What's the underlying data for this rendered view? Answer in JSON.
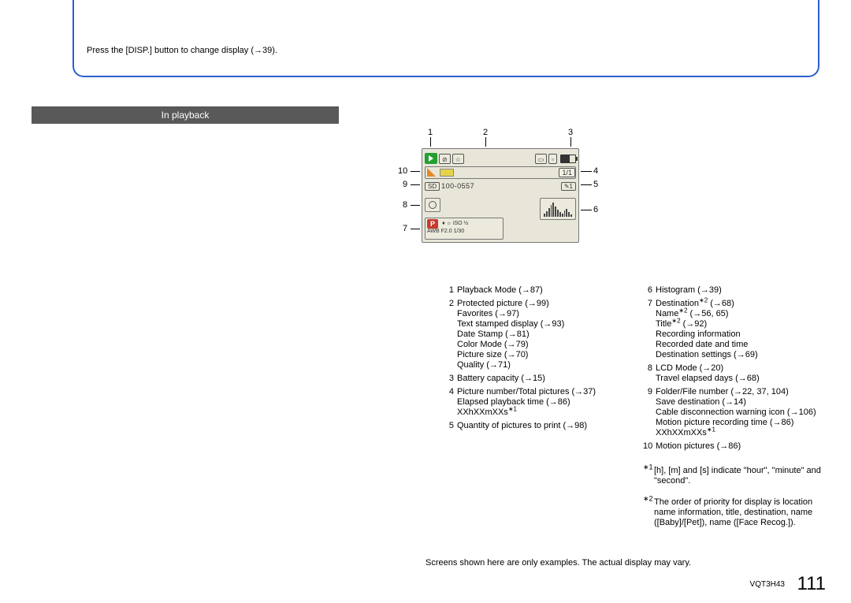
{
  "intro": "Press the [DISP.] button to change display (→39).",
  "section_title": "In playback",
  "callouts": [
    "1",
    "2",
    "3",
    "4",
    "5",
    "6",
    "7",
    "8",
    "9",
    "10"
  ],
  "screen": {
    "star": "☆",
    "counter": "1/1",
    "folder": "100-0557",
    "print": "✎1",
    "iso": "iso",
    "p": "P",
    "rec1": "♦ ☼ iSO ½",
    "rec2": "AWB F2.0  1/30",
    "sd": "SD"
  },
  "legend_left": [
    {
      "n": "1",
      "lines": [
        "Playback Mode (→87)"
      ]
    },
    {
      "n": "2",
      "lines": [
        "Protected picture (→99)",
        "Favorites (→97)",
        "Text stamped display (→93)",
        "Date Stamp (→81)",
        "Color Mode (→79)",
        "Picture size (→70)",
        "Quality (→71)"
      ]
    },
    {
      "n": "3",
      "lines": [
        "Battery capacity (→15)"
      ]
    },
    {
      "n": "4",
      "lines": [
        "Picture number/Total pictures (→37)",
        "Elapsed playback time (→86)",
        "XXhXXmXXs∗1"
      ]
    },
    {
      "n": "5",
      "lines": [
        "Quantity of pictures to print (→98)"
      ]
    }
  ],
  "legend_right": [
    {
      "n": "6",
      "lines": [
        "Histogram (→39)"
      ]
    },
    {
      "n": "7",
      "lines": [
        "Destination∗2 (→68)",
        "Name∗2 (→56, 65)",
        "Title∗2 (→92)",
        "Recording information",
        "Recorded date and time",
        "Destination settings (→69)"
      ]
    },
    {
      "n": "8",
      "lines": [
        "LCD Mode (→20)",
        "Travel elapsed days (→68)"
      ]
    },
    {
      "n": "9",
      "lines": [
        "Folder/File number (→22, 37, 104)",
        "Save destination (→14)",
        "Cable disconnection warning icon (→106)",
        "Motion picture recording time (→86)",
        "XXhXXmXXs∗1"
      ]
    },
    {
      "n": "10",
      "lines": [
        "Motion pictures (→86)"
      ]
    }
  ],
  "notes": [
    {
      "mark": "∗1",
      "text": "[h], [m] and [s] indicate \"hour\", \"minute\" and \"second\"."
    },
    {
      "mark": "∗2",
      "text": "The order of priority for display is location name information, title, destination, name ([Baby]/[Pet]), name ([Face Recog.])."
    }
  ],
  "bottom_note": "Screens shown here are only examples. The actual display may vary.",
  "footer_code": "VQT3H43",
  "page_num": "111",
  "hist_heights": [
    20,
    35,
    60,
    80,
    95,
    70,
    50,
    30,
    20,
    40,
    55,
    30,
    15
  ]
}
